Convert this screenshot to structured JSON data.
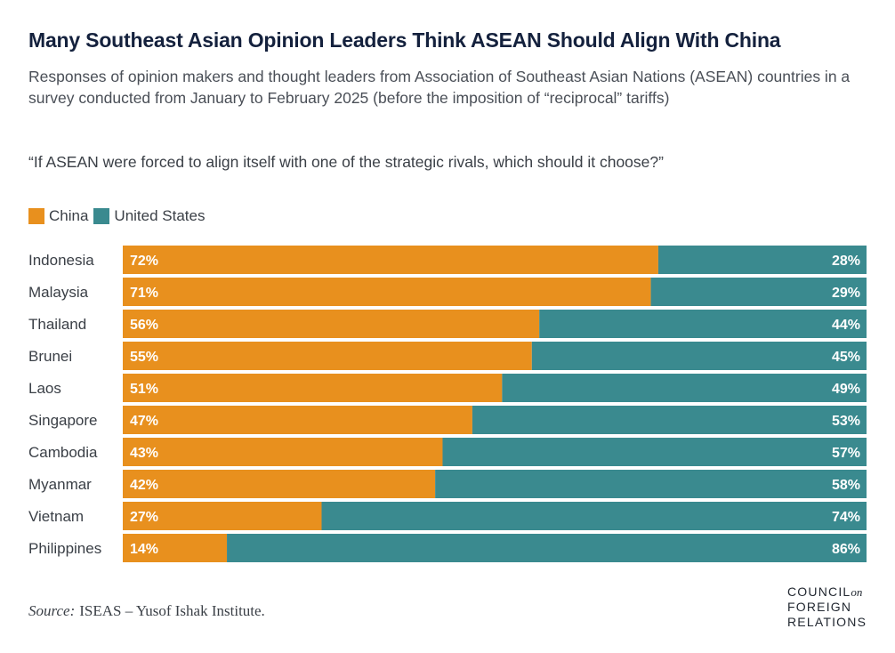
{
  "title": "Many Southeast Asian Opinion Leaders Think ASEAN Should Align With China",
  "subtitle": "Responses of opinion makers and thought leaders from Association of Southeast Asian Nations (ASEAN) countries in a survey conducted from January to February 2025 (before the imposition of “reciprocal” tariffs)",
  "question": "“If ASEAN were forced to align itself with one of the strategic rivals, which should it choose?”",
  "source": {
    "label": "Source:",
    "text": "ISEAS – Yusof Ishak Institute."
  },
  "logo": {
    "line1": "COUNCIL",
    "on": "on",
    "line2": "FOREIGN",
    "line3": "RELATIONS"
  },
  "colors": {
    "china": "#e8901e",
    "united_states": "#3a8a8f"
  },
  "chart_data": {
    "type": "bar",
    "stacked": true,
    "orientation": "horizontal",
    "categories": [
      "Indonesia",
      "Malaysia",
      "Thailand",
      "Brunei",
      "Laos",
      "Singapore",
      "Cambodia",
      "Myanmar",
      "Vietnam",
      "Philippines"
    ],
    "series": [
      {
        "name": "China",
        "values": [
          72,
          71,
          56,
          55,
          51,
          47,
          43,
          42,
          27,
          14
        ],
        "labels": [
          "72%",
          "71%",
          "56%",
          "55%",
          "51%",
          "47%",
          "43%",
          "42%",
          "27%",
          "14%"
        ]
      },
      {
        "name": "United States",
        "values": [
          28,
          29,
          44,
          45,
          49,
          53,
          57,
          58,
          74,
          86
        ],
        "labels": [
          "28%",
          "29%",
          "44%",
          "45%",
          "49%",
          "53%",
          "57%",
          "58%",
          "74%",
          "86%"
        ]
      }
    ],
    "xlim": [
      0,
      100
    ],
    "legend_position": "top-left",
    "grid": false
  }
}
